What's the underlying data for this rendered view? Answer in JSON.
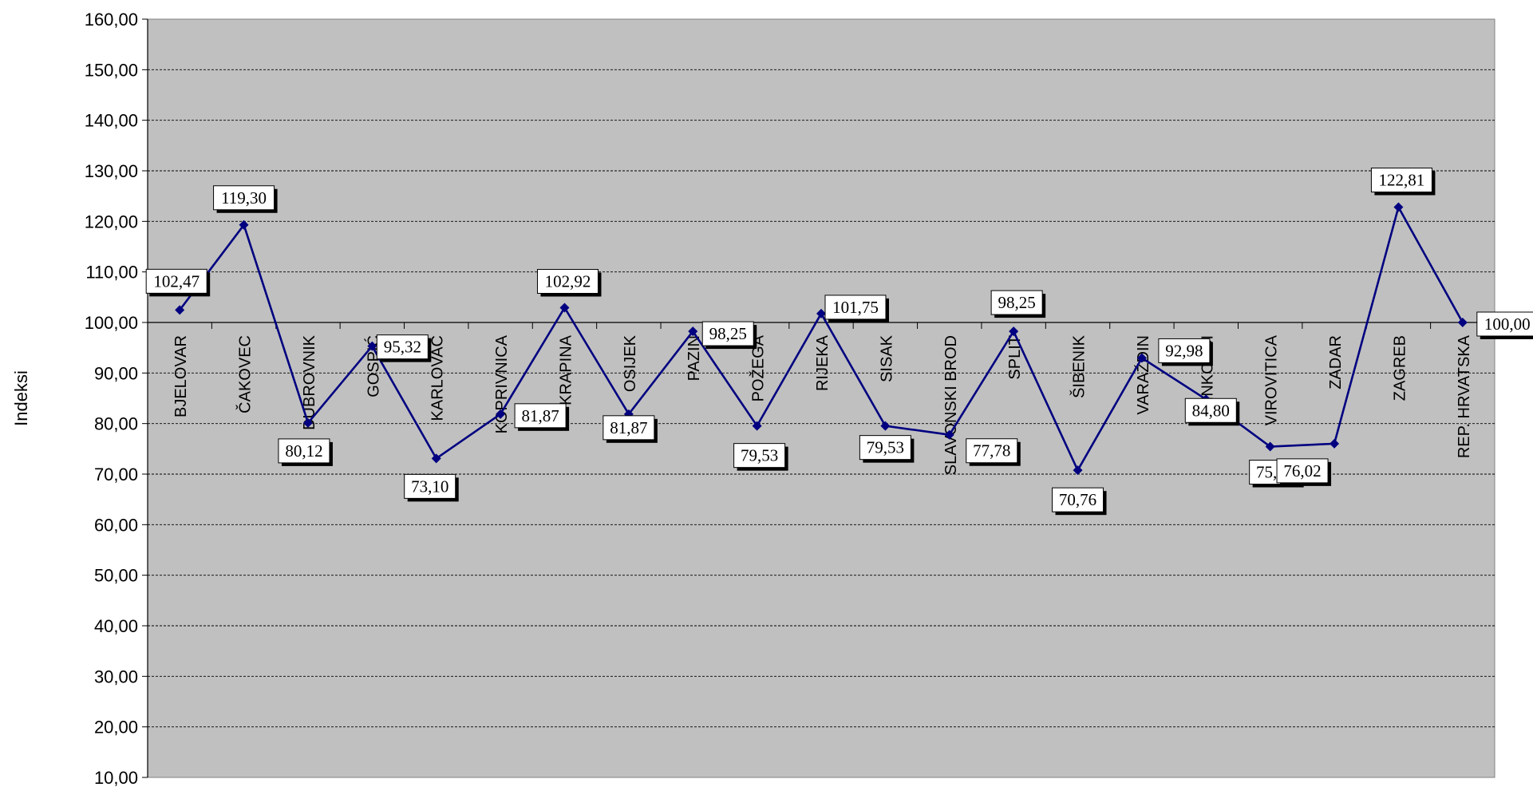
{
  "chart_data": {
    "type": "line",
    "title": "",
    "xlabel": "",
    "ylabel": "Indeksi",
    "ylim": [
      10,
      160
    ],
    "yticks": [
      "10,00",
      "20,00",
      "30,00",
      "40,00",
      "50,00",
      "60,00",
      "70,00",
      "80,00",
      "90,00",
      "100,00",
      "110,00",
      "120,00",
      "130,00",
      "140,00",
      "150,00",
      "160,00"
    ],
    "categories": [
      "BJELOVAR",
      "ČAKOVEC",
      "DUBROVNIK",
      "GOSPIĆ",
      "KARLOVAC",
      "KOPRIVNICA",
      "KRAPINA",
      "OSIJEK",
      "PAZIN",
      "POŽEGA",
      "RIJEKA",
      "SISAK",
      "SLAVONSKI BROD",
      "SPLIT",
      "ŠIBENIK",
      "VARAŽDIN",
      "VINKOVCI",
      "VIROVITICA",
      "ZADAR",
      "ZAGREB",
      "REP. HRVATSKA"
    ],
    "series": [
      {
        "values": [
          102.47,
          119.3,
          80.12,
          95.32,
          73.1,
          81.87,
          102.92,
          81.87,
          98.25,
          79.53,
          101.75,
          79.53,
          77.78,
          98.25,
          70.76,
          92.98,
          84.8,
          75.44,
          76.02,
          122.81,
          100.0
        ],
        "labels": [
          "102,47",
          "119,30",
          "80,12",
          "95,32",
          "73,10",
          "81,87",
          "102,92",
          "81,87",
          "98,25",
          "79,53",
          "101,75",
          "79,53",
          "77,78",
          "98,25",
          "70,76",
          "92,98",
          "84,80",
          "75,44",
          "76,02",
          "122,81",
          "100,00"
        ]
      }
    ],
    "colors": {
      "line": "#000080",
      "plot_background": "#c0c0c0",
      "grid": "#000000"
    },
    "grid": true,
    "category_axis_crosses_at": 100
  }
}
